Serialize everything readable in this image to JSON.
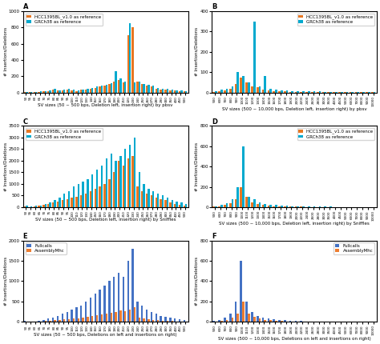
{
  "chart_data": [
    {
      "type": "bar",
      "title": "A",
      "xlabel": "SV sizes (50 ~ 500 bps, Deletion left, insertion right) by pbsv",
      "ylabel": "# Insertions/Deletions",
      "categories": [
        "50",
        "55",
        "60",
        "65",
        "70",
        "75",
        "80",
        "85",
        "90",
        "95",
        "100",
        "110",
        "120",
        "130",
        "140",
        "150",
        "160",
        "170",
        "180",
        "190",
        "200",
        "210",
        "220",
        "230",
        "240",
        "250",
        "260",
        "270",
        "280",
        "290",
        "300",
        "350",
        "400",
        "450",
        "500"
      ],
      "series": [
        {
          "name": "HCC1395BL_v1.0 as reference",
          "color": "#E87722",
          "values": [
            5,
            3,
            5,
            10,
            15,
            20,
            40,
            25,
            30,
            35,
            30,
            20,
            35,
            40,
            50,
            60,
            70,
            80,
            100,
            130,
            150,
            120,
            700,
            800,
            130,
            100,
            80,
            70,
            50,
            40,
            35,
            30,
            25,
            20,
            15
          ]
        },
        {
          "name": "GRCh38 as reference",
          "color": "#00A9CE",
          "values": [
            8,
            5,
            8,
            15,
            20,
            25,
            50,
            30,
            35,
            45,
            35,
            25,
            40,
            50,
            60,
            75,
            85,
            90,
            110,
            260,
            170,
            130,
            850,
            120,
            130,
            100,
            90,
            80,
            60,
            50,
            45,
            35,
            30,
            25,
            20
          ]
        }
      ],
      "ylim": [
        0,
        1000
      ],
      "yticks": [
        0,
        200,
        400,
        600,
        800,
        1000
      ],
      "legend": "upper left"
    },
    {
      "type": "bar",
      "title": "B",
      "xlabel": "SV sizes (500 ~ 10,000 bps, Deletion left, insertion right) by pbsv",
      "ylabel": "# Insertions/Deletions",
      "categories": [
        "500",
        "600",
        "700",
        "800",
        "900",
        "1000",
        "1100",
        "1200",
        "1300",
        "1400",
        "1500",
        "1600",
        "1700",
        "1800",
        "1900",
        "2000",
        "2200",
        "2400",
        "2600",
        "2800",
        "3000",
        "3500",
        "4000",
        "4500",
        "5000",
        "6000",
        "7000",
        "8000",
        "9000",
        "10000"
      ],
      "series": [
        {
          "name": "HCC1395BL_v1.0 as reference",
          "color": "#E87722",
          "values": [
            2,
            5,
            10,
            20,
            40,
            75,
            50,
            30,
            25,
            15,
            10,
            8,
            5,
            5,
            4,
            4,
            3,
            3,
            2,
            2,
            2,
            2,
            2,
            1,
            1,
            1,
            1,
            1,
            1,
            1
          ]
        },
        {
          "name": "GRCh38 as reference",
          "color": "#00A9CE",
          "values": [
            5,
            15,
            20,
            30,
            100,
            80,
            50,
            350,
            30,
            80,
            20,
            15,
            10,
            10,
            8,
            8,
            6,
            6,
            5,
            5,
            4,
            4,
            3,
            3,
            2,
            2,
            2,
            2,
            2,
            2
          ]
        }
      ],
      "ylim": [
        0,
        400
      ],
      "yticks": [
        0,
        100,
        200,
        300,
        400
      ],
      "legend": "upper right"
    },
    {
      "type": "bar",
      "title": "C",
      "xlabel": "SV sizes (50 ~ 500 bps, Deletion left, insertion right) by Sniffles",
      "ylabel": "# Insertions/Deletions",
      "categories": [
        "50",
        "55",
        "60",
        "65",
        "70",
        "75",
        "80",
        "85",
        "90",
        "95",
        "100",
        "110",
        "120",
        "130",
        "140",
        "150",
        "160",
        "170",
        "180",
        "190",
        "200",
        "210",
        "220",
        "230",
        "240",
        "250",
        "260",
        "270",
        "280",
        "290",
        "300",
        "350",
        "400",
        "450",
        "500"
      ],
      "series": [
        {
          "name": "HCC1395BL_v1.0 as reference",
          "color": "#E87722",
          "values": [
            20,
            10,
            30,
            50,
            100,
            150,
            200,
            250,
            300,
            350,
            400,
            450,
            500,
            600,
            700,
            800,
            900,
            1000,
            1200,
            1500,
            2000,
            1800,
            2100,
            2200,
            900,
            700,
            600,
            500,
            400,
            350,
            300,
            200,
            150,
            100,
            80
          ]
        },
        {
          "name": "GRCh38 as reference",
          "color": "#00A9CE",
          "values": [
            50,
            30,
            50,
            80,
            150,
            200,
            300,
            400,
            600,
            700,
            900,
            1000,
            1100,
            1200,
            1400,
            1600,
            1800,
            2100,
            2300,
            2000,
            2200,
            2500,
            2700,
            3000,
            1500,
            1000,
            800,
            700,
            600,
            500,
            400,
            300,
            250,
            200,
            150
          ]
        }
      ],
      "ylim": [
        0,
        3500
      ],
      "yticks": [
        0,
        500,
        1000,
        1500,
        2000,
        2500,
        3000,
        3500
      ],
      "legend": "upper left"
    },
    {
      "type": "bar",
      "title": "D",
      "xlabel": "SV sizes (500 ~ 10,000 bps, Deletion left, insertion right) by Sniffles",
      "ylabel": "# Insertions/Deletions",
      "categories": [
        "500",
        "600",
        "700",
        "800",
        "900",
        "1000",
        "1100",
        "1200",
        "1300",
        "1400",
        "1500",
        "1600",
        "1700",
        "1800",
        "1900",
        "2000",
        "2200",
        "2400",
        "2600",
        "2800",
        "3000",
        "3500",
        "4000",
        "4500",
        "5000",
        "6000",
        "7000",
        "8000",
        "9000",
        "10000"
      ],
      "series": [
        {
          "name": "HCC1395BL_v1.0 as reference",
          "color": "#E87722",
          "values": [
            5,
            10,
            20,
            40,
            80,
            200,
            100,
            50,
            30,
            20,
            15,
            10,
            8,
            6,
            5,
            5,
            4,
            3,
            3,
            2,
            2,
            2,
            1,
            1,
            1,
            1,
            1,
            1,
            1,
            1
          ]
        },
        {
          "name": "GRCh38 as reference",
          "color": "#00A9CE",
          "values": [
            10,
            20,
            40,
            80,
            200,
            600,
            100,
            80,
            50,
            30,
            25,
            20,
            15,
            12,
            10,
            10,
            8,
            6,
            5,
            5,
            4,
            4,
            3,
            3,
            2,
            2,
            2,
            2,
            1,
            1
          ]
        }
      ],
      "ylim": [
        0,
        800
      ],
      "yticks": [
        0,
        200,
        400,
        600,
        800
      ],
      "legend": "upper right"
    },
    {
      "type": "bar",
      "title": "E",
      "xlabel": "SV sizes (50 ~ 500 bps, Deletions on left and insertions on right)",
      "ylabel": "# Insertions/Deletions",
      "categories": [
        "50",
        "55",
        "60",
        "65",
        "70",
        "75",
        "80",
        "85",
        "90",
        "95",
        "100",
        "110",
        "120",
        "130",
        "140",
        "150",
        "160",
        "170",
        "180",
        "190",
        "200",
        "210",
        "220",
        "230",
        "240",
        "250",
        "260",
        "270",
        "280",
        "290",
        "300",
        "350",
        "400",
        "450",
        "500"
      ],
      "series": [
        {
          "name": "Fullcalls",
          "color": "#4472C4",
          "values": [
            20,
            10,
            15,
            30,
            50,
            80,
            100,
            150,
            200,
            250,
            300,
            350,
            400,
            500,
            600,
            700,
            800,
            900,
            1000,
            1100,
            1200,
            1100,
            1500,
            1800,
            500,
            400,
            300,
            250,
            200,
            150,
            120,
            100,
            80,
            60,
            50
          ]
        },
        {
          "name": "AssemblyMhc",
          "color": "#ED7D31",
          "values": [
            10,
            5,
            8,
            15,
            20,
            30,
            40,
            50,
            60,
            70,
            80,
            90,
            100,
            120,
            140,
            160,
            180,
            200,
            220,
            250,
            280,
            260,
            300,
            350,
            100,
            80,
            60,
            50,
            40,
            30,
            25,
            20,
            15,
            12,
            10
          ]
        }
      ],
      "ylim": [
        0,
        2000
      ],
      "yticks": [
        0,
        500,
        1000,
        1500,
        2000
      ],
      "legend": "upper left"
    },
    {
      "type": "bar",
      "title": "F",
      "xlabel": "SV sizes (500 ~ 10,000 bps, Deletions on left and insertions on right)",
      "ylabel": "# Insertions/Deletions",
      "categories": [
        "500",
        "600",
        "700",
        "800",
        "900",
        "1000",
        "1100",
        "1200",
        "1300",
        "1400",
        "1500",
        "1600",
        "1700",
        "1800",
        "1900",
        "2000",
        "2200",
        "2400",
        "2600",
        "2800",
        "3000",
        "3500",
        "4000",
        "4500",
        "5000",
        "6000",
        "7000",
        "8000",
        "9000",
        "10000"
      ],
      "series": [
        {
          "name": "Fullcalls",
          "color": "#4472C4",
          "values": [
            10,
            20,
            40,
            80,
            200,
            600,
            200,
            100,
            60,
            40,
            30,
            25,
            20,
            15,
            12,
            10,
            8,
            6,
            5,
            4,
            4,
            3,
            3,
            2,
            2,
            2,
            1,
            1,
            1,
            1
          ]
        },
        {
          "name": "AssemblyMhc",
          "color": "#ED7D31",
          "values": [
            5,
            10,
            20,
            40,
            80,
            200,
            80,
            50,
            30,
            20,
            15,
            10,
            8,
            6,
            5,
            4,
            4,
            3,
            2,
            2,
            2,
            2,
            1,
            1,
            1,
            1,
            1,
            1,
            1,
            1
          ]
        }
      ],
      "ylim": [
        0,
        800
      ],
      "yticks": [
        0,
        200,
        400,
        600,
        800
      ],
      "legend": "upper right"
    }
  ]
}
